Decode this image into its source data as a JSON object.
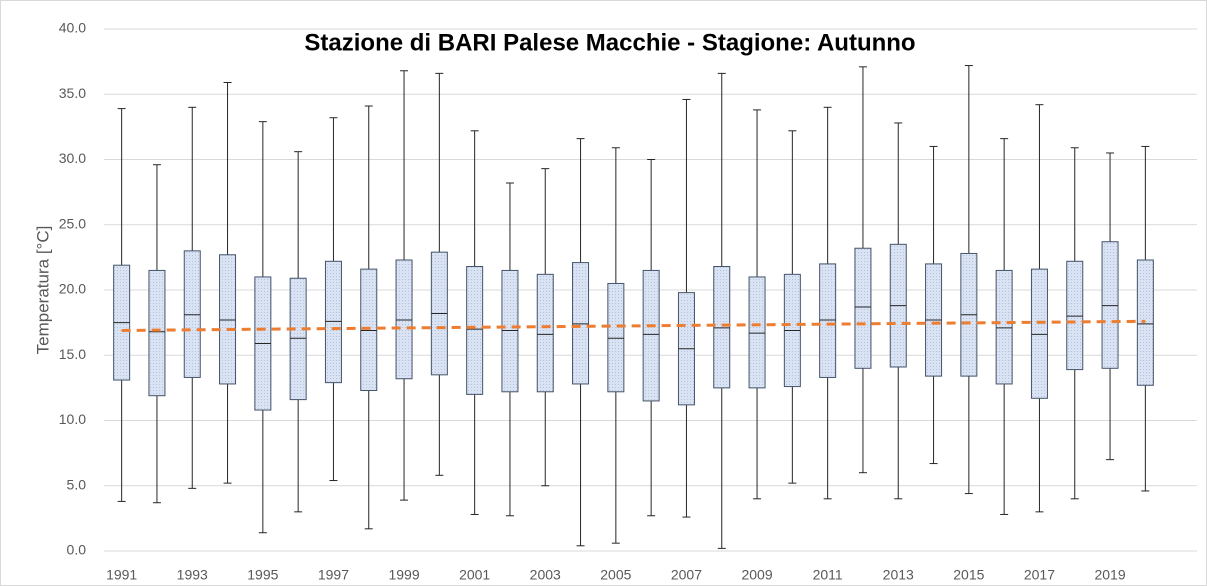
{
  "chart_data": {
    "type": "box",
    "title": "Stazione di BARI Palese Macchie - Stagione: Autunno",
    "y_label": "Temperatura [°C]",
    "categories": [
      "1991",
      null,
      "1993",
      null,
      "1995",
      null,
      "1997",
      null,
      "1999",
      null,
      "2001",
      null,
      "2003",
      null,
      "2005",
      null,
      "2007",
      null,
      "2009",
      null,
      "2011",
      null,
      "2013",
      null,
      "2015",
      null,
      "2017",
      null,
      "2019",
      null
    ],
    "box_color": "#dae3f3",
    "boxes": [
      {
        "min": 3.8,
        "q1": 13.1,
        "median": 17.5,
        "q3": 21.9,
        "max": 33.9
      },
      {
        "min": 3.7,
        "q1": 11.9,
        "median": 16.8,
        "q3": 21.5,
        "max": 29.6
      },
      {
        "min": 4.8,
        "q1": 13.3,
        "median": 18.1,
        "q3": 23.0,
        "max": 34.0
      },
      {
        "min": 5.2,
        "q1": 12.8,
        "median": 17.7,
        "q3": 22.7,
        "max": 35.9
      },
      {
        "min": 1.4,
        "q1": 10.8,
        "median": 15.9,
        "q3": 21.0,
        "max": 32.9
      },
      {
        "min": 3.0,
        "q1": 11.6,
        "median": 16.3,
        "q3": 20.9,
        "max": 30.6
      },
      {
        "min": 5.4,
        "q1": 12.9,
        "median": 17.6,
        "q3": 22.2,
        "max": 33.2
      },
      {
        "min": 1.7,
        "q1": 12.3,
        "median": 16.9,
        "q3": 21.6,
        "max": 34.1
      },
      {
        "min": 3.9,
        "q1": 13.2,
        "median": 17.7,
        "q3": 22.3,
        "max": 36.8
      },
      {
        "min": 5.8,
        "q1": 13.5,
        "median": 18.2,
        "q3": 22.9,
        "max": 36.6
      },
      {
        "min": 2.8,
        "q1": 12.0,
        "median": 17.0,
        "q3": 21.8,
        "max": 32.2
      },
      {
        "min": 2.7,
        "q1": 12.2,
        "median": 16.9,
        "q3": 21.5,
        "max": 28.2
      },
      {
        "min": 5.0,
        "q1": 12.2,
        "median": 16.6,
        "q3": 21.2,
        "max": 29.3
      },
      {
        "min": 0.4,
        "q1": 12.8,
        "median": 17.4,
        "q3": 22.1,
        "max": 31.6
      },
      {
        "min": 0.6,
        "q1": 12.2,
        "median": 16.3,
        "q3": 20.5,
        "max": 30.9
      },
      {
        "min": 2.7,
        "q1": 11.5,
        "median": 16.6,
        "q3": 21.5,
        "max": 30.0
      },
      {
        "min": 2.6,
        "q1": 11.2,
        "median": 15.5,
        "q3": 19.8,
        "max": 34.6
      },
      {
        "min": 0.2,
        "q1": 12.5,
        "median": 17.1,
        "q3": 21.8,
        "max": 36.6
      },
      {
        "min": 4.0,
        "q1": 12.5,
        "median": 16.7,
        "q3": 21.0,
        "max": 33.8
      },
      {
        "min": 5.2,
        "q1": 12.6,
        "median": 16.9,
        "q3": 21.2,
        "max": 32.2
      },
      {
        "min": 4.0,
        "q1": 13.3,
        "median": 17.7,
        "q3": 22.0,
        "max": 34.0
      },
      {
        "min": 6.0,
        "q1": 14.0,
        "median": 18.7,
        "q3": 23.2,
        "max": 37.1
      },
      {
        "min": 4.0,
        "q1": 14.1,
        "median": 18.8,
        "q3": 23.5,
        "max": 32.8
      },
      {
        "min": 6.7,
        "q1": 13.4,
        "median": 17.7,
        "q3": 22.0,
        "max": 31.0
      },
      {
        "min": 4.4,
        "q1": 13.4,
        "median": 18.1,
        "q3": 22.8,
        "max": 37.2
      },
      {
        "min": 2.8,
        "q1": 12.8,
        "median": 17.1,
        "q3": 21.5,
        "max": 31.6
      },
      {
        "min": 3.0,
        "q1": 11.7,
        "median": 16.6,
        "q3": 21.6,
        "max": 34.2
      },
      {
        "min": 4.0,
        "q1": 13.9,
        "median": 18.0,
        "q3": 22.2,
        "max": 30.9
      },
      {
        "min": 7.0,
        "q1": 14.0,
        "median": 18.8,
        "q3": 23.7,
        "max": 30.5
      },
      {
        "min": 4.6,
        "q1": 12.7,
        "median": 17.4,
        "q3": 22.3,
        "max": 31.0
      }
    ],
    "trend": {
      "color": "#ed7d31",
      "start": 16.9,
      "end": 17.6
    },
    "ylim": [
      0,
      40
    ],
    "yticks": [
      {
        "value": 0,
        "label": "0.0"
      },
      {
        "value": 5,
        "label": "5.0"
      },
      {
        "value": 10,
        "label": "10.0"
      },
      {
        "value": 15,
        "label": "15.0"
      },
      {
        "value": 20,
        "label": "20.0"
      },
      {
        "value": 25,
        "label": "25.0"
      },
      {
        "value": 30,
        "label": "30.0"
      },
      {
        "value": 35,
        "label": "35.0"
      },
      {
        "value": 40,
        "label": "40.0"
      }
    ],
    "grid": true
  }
}
